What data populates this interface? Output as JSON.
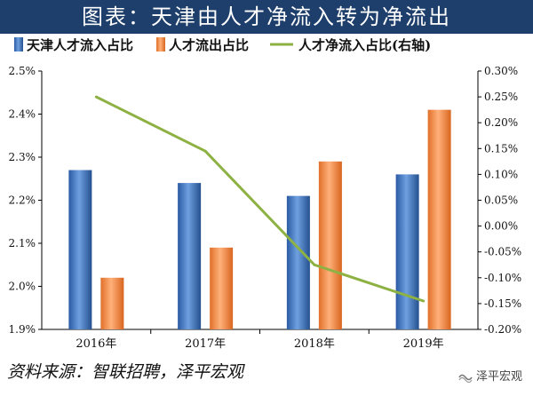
{
  "title": "图表：天津由人才净流入转为净流出",
  "source": "资料来源：智联招聘，泽平宏观",
  "watermark": "泽平宏观",
  "colors": {
    "bar_in": "#3a73c0",
    "bar_out": "#f08a3c",
    "line": "#8db143",
    "title_bg": "#1e3f6b"
  },
  "chart_data": {
    "type": "bar",
    "categories": [
      "2016年",
      "2017年",
      "2018年",
      "2019年"
    ],
    "series": [
      {
        "name": "天津人才流入占比",
        "type": "bar",
        "axis": "left",
        "values": [
          2.27,
          2.24,
          2.21,
          2.26
        ]
      },
      {
        "name": "人才流出占比",
        "type": "bar",
        "axis": "left",
        "values": [
          2.02,
          2.09,
          2.29,
          2.41
        ]
      },
      {
        "name": "人才净流入占比(右轴)",
        "type": "line",
        "axis": "right",
        "values": [
          0.25,
          0.145,
          -0.075,
          -0.145
        ]
      }
    ],
    "y_left": {
      "min": 1.9,
      "max": 2.5,
      "ticks": [
        "1.9%",
        "2.0%",
        "2.1%",
        "2.2%",
        "2.3%",
        "2.4%",
        "2.5%"
      ]
    },
    "y_right": {
      "min": -0.2,
      "max": 0.3,
      "ticks": [
        "-0.20%",
        "-0.15%",
        "-0.10%",
        "-0.05%",
        "0.00%",
        "0.05%",
        "0.10%",
        "0.15%",
        "0.20%",
        "0.25%",
        "0.30%"
      ]
    },
    "legend_position": "top",
    "grid": false
  }
}
